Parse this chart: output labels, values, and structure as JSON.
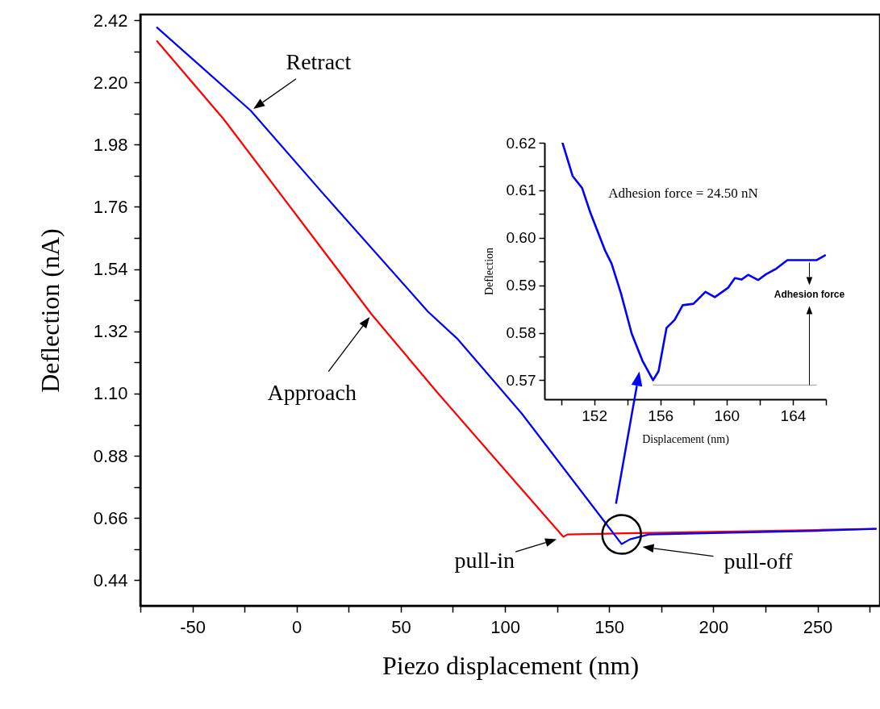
{
  "chart_data": [
    {
      "type": "line",
      "xlabel": "Piezo displacement (nm)",
      "ylabel": "Deflection (nA)",
      "xlim": [
        -75,
        280
      ],
      "ylim": [
        0.35,
        2.44
      ],
      "xticks": [
        {
          "value": -75,
          "label": null
        },
        -50,
        {
          "value": -25,
          "label": null
        },
        0,
        {
          "value": 25,
          "label": null
        },
        50,
        {
          "value": 75,
          "label": null
        },
        100,
        {
          "value": 125,
          "label": null
        },
        150,
        {
          "value": 175,
          "label": null
        },
        200,
        {
          "value": 225,
          "label": null
        },
        250,
        {
          "value": 275,
          "label": null
        }
      ],
      "yticks": [
        0.44,
        {
          "value": 0.55,
          "label": null
        },
        0.66,
        {
          "value": 0.77,
          "label": null
        },
        0.88,
        {
          "value": 0.99,
          "label": null
        },
        {
          "value": 1.1,
          "label": "1.10"
        },
        {
          "value": 1.21,
          "label": null
        },
        1.32,
        {
          "value": 1.43,
          "label": null
        },
        1.54,
        {
          "value": 1.65,
          "label": null
        },
        1.76,
        {
          "value": 1.87,
          "label": null
        },
        1.98,
        {
          "value": 2.09,
          "label": null
        },
        {
          "value": 2.2,
          "label": "2.20"
        },
        {
          "value": 2.31,
          "label": null
        },
        2.42
      ],
      "series": [
        {
          "color": "#ff0000",
          "x": [
            -67,
            -35,
            0,
            36,
            68,
            100,
            128,
            130,
            150,
            200,
            250,
            278
          ],
          "values": [
            2.346,
            2.07,
            1.73,
            1.38,
            1.1,
            0.83,
            0.594,
            0.602,
            0.605,
            0.611,
            0.618,
            0.622
          ]
        },
        {
          "color": "#0000ff",
          "x": [
            -67,
            -22,
            12,
            63,
            77,
            108,
            148,
            156,
            160,
            169,
            200,
            250,
            278
          ],
          "values": [
            2.394,
            2.1,
            1.813,
            1.39,
            1.295,
            1.03,
            0.645,
            0.568,
            0.585,
            0.602,
            0.607,
            0.615,
            0.622
          ]
        }
      ],
      "annotations": [
        {
          "text": "Retract",
          "x": -22,
          "y": 2.1
        },
        {
          "text": "Approach",
          "x": 36,
          "y": 1.38
        },
        {
          "text": "pull-in",
          "x": 127,
          "y": 0.59
        },
        "pull-off"
      ]
    },
    {
      "type": "line",
      "xlabel": "Displacement (nm)",
      "ylabel": "Deflection",
      "xlim": [
        149,
        166
      ],
      "ylim": [
        0.566,
        0.62
      ],
      "xticks": [
        {
          "value": 150,
          "label": null
        },
        152,
        {
          "value": 154,
          "label": null
        },
        156,
        {
          "value": 158,
          "label": null
        },
        160,
        {
          "value": 162,
          "label": null
        },
        164,
        {
          "value": 166,
          "label": null
        }
      ],
      "yticks": [
        0.57,
        {
          "value": 0.575,
          "label": null
        },
        0.58,
        {
          "value": 0.585,
          "label": null
        },
        0.59,
        {
          "value": 0.595,
          "label": null
        },
        {
          "value": 0.6,
          "label": "0.60"
        },
        {
          "value": 0.605,
          "label": null
        },
        0.61,
        {
          "value": 0.615,
          "label": null
        },
        0.62
      ],
      "series": [
        {
          "color": "#0000ff",
          "x": [
            150.09,
            150.7,
            151.27,
            151.76,
            152.65,
            153.05,
            153.62,
            154.27,
            154.92,
            155.56,
            155.89,
            156.37,
            156.86,
            157.35,
            158.0,
            158.72,
            159.29,
            160.1,
            160.5,
            160.9,
            161.3,
            161.9,
            162.37,
            163.0,
            163.67,
            165.45,
            165.94
          ],
          "values": [
            0.62,
            0.613,
            0.6105,
            0.6054,
            0.5974,
            0.5946,
            0.5883,
            0.5798,
            0.5741,
            0.57,
            0.5719,
            0.581,
            0.5827,
            0.5858,
            0.5861,
            0.5886,
            0.5875,
            0.5895,
            0.5915,
            0.5912,
            0.5922,
            0.5911,
            0.5923,
            0.5935,
            0.5953,
            0.5953,
            0.5963
          ]
        }
      ],
      "annotations": [
        "Adhesion force = 24.50 nN",
        {
          "text": "Adhesion force",
          "x": 165,
          "y": 0.5953
        }
      ],
      "ref_lines": [
        {
          "axis": "y",
          "value": 0.569,
          "color": "#999999"
        }
      ]
    }
  ]
}
